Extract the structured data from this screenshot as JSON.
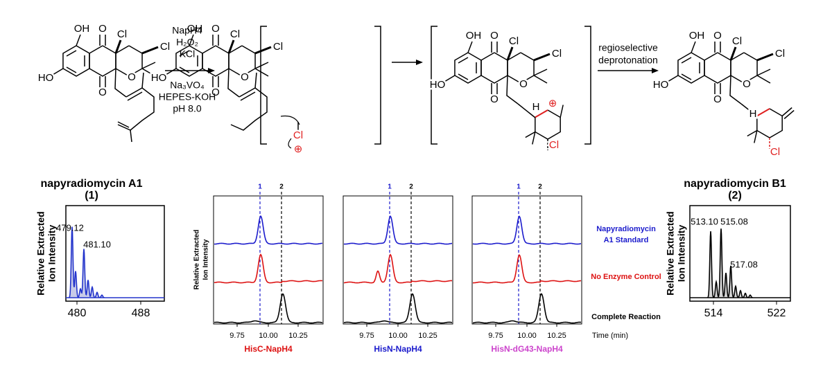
{
  "reaction": {
    "reagents": [
      "NapH4",
      "H₂O₂",
      "KCl",
      "Na₃VO₄",
      "HEPES-KOH",
      "pH 8.0"
    ],
    "final_step": [
      "regioselective",
      "deprotonation"
    ]
  },
  "molecules": [
    {
      "labels": [
        "OH",
        "O",
        "Cl",
        "Cl",
        "HO",
        "O",
        "O"
      ]
    },
    {
      "labels": [
        "OH",
        "O",
        "Cl",
        "Cl",
        "HO",
        "O",
        "O",
        "Cl",
        "⊕"
      ]
    },
    {
      "labels": [
        "OH",
        "O",
        "Cl",
        "Cl",
        "HO",
        "O",
        "O",
        "H",
        "⊕",
        "Cl"
      ]
    },
    {
      "labels": [
        "OH",
        "O",
        "Cl",
        "Cl",
        "HO",
        "O",
        "O",
        "H",
        "Cl"
      ]
    }
  ],
  "spectra": [
    {
      "title": "napyradiomycin A1",
      "number": "(1)",
      "ylabel": [
        "Relative Extracted",
        "Ion Intensity"
      ],
      "peaks": [
        "479.12",
        "481.10"
      ],
      "xticks": [
        "480",
        "488"
      ]
    },
    {
      "title": "napyradiomycin B1",
      "number": "(2)",
      "ylabel": [
        "Relative Extracted",
        "Ion Intensity"
      ],
      "peaks": [
        "513.10",
        "515.08",
        "517.08"
      ],
      "xticks": [
        "514",
        "522"
      ]
    }
  ],
  "chromatograms": {
    "ylabel": [
      "Relative Extracted",
      "Ion Intensity"
    ],
    "markers": [
      "1",
      "2"
    ],
    "xticks": [
      "9.75",
      "10.00",
      "10.25"
    ],
    "xlabel": "Time (min)",
    "traces": [
      [
        "Napyradiomycin",
        "A1 Standard"
      ],
      [
        "No Enzyme Control"
      ],
      [
        "Complete Reaction"
      ]
    ],
    "panels": [
      "HisC-NapH4",
      "HisN-NapH4",
      "HisN-dG43-NapH4"
    ]
  }
}
